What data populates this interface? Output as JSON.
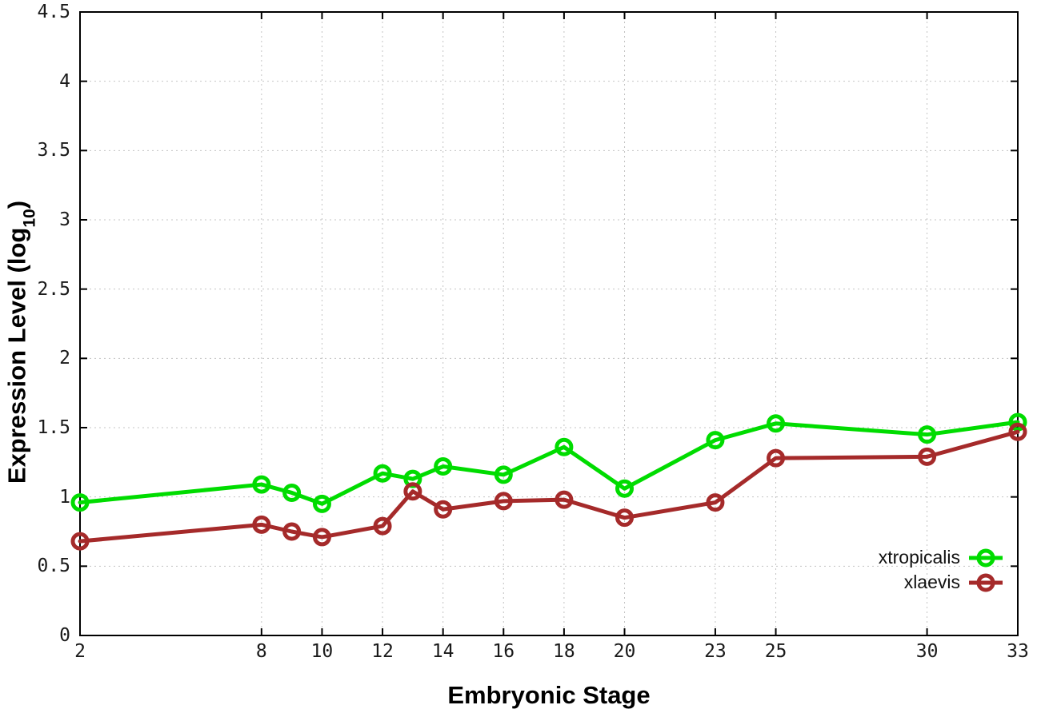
{
  "chart_data": {
    "type": "line",
    "title": "",
    "xlabel": "Embryonic Stage",
    "ylabel": "Expression Level (log10)",
    "ylabel_parts": {
      "prefix": "Expression Level (log",
      "subscript": "10",
      "suffix": ")"
    },
    "x": [
      2,
      8,
      9,
      10,
      12,
      13,
      14,
      16,
      18,
      20,
      23,
      25,
      30,
      33
    ],
    "series": [
      {
        "name": "xtropicalis",
        "color": "#00dc00",
        "marker": "open-circle",
        "values": [
          0.96,
          1.09,
          1.03,
          0.95,
          1.17,
          1.13,
          1.22,
          1.16,
          1.36,
          1.06,
          1.41,
          1.53,
          1.45,
          1.54
        ]
      },
      {
        "name": "xlaevis",
        "color": "#a52a2a",
        "marker": "open-circle",
        "values": [
          0.68,
          0.8,
          0.75,
          0.71,
          0.79,
          1.04,
          0.91,
          0.97,
          0.98,
          0.85,
          0.96,
          1.28,
          1.29,
          1.47
        ]
      }
    ],
    "xlim": [
      2,
      33
    ],
    "ylim": [
      0,
      4.5
    ],
    "x_ticks": [
      2,
      8,
      10,
      12,
      14,
      16,
      18,
      20,
      23,
      25,
      30,
      33
    ],
    "x_tick_labels": [
      "2",
      "8",
      "10",
      "12",
      "14",
      "16",
      "18",
      "20",
      "23",
      "25",
      "30",
      "33"
    ],
    "y_ticks": [
      0,
      0.5,
      1,
      1.5,
      2,
      2.5,
      3,
      3.5,
      4,
      4.5
    ],
    "y_tick_labels": [
      "0",
      "0.5",
      "1",
      "1.5",
      "2",
      "2.5",
      "3",
      "3.5",
      "4",
      "4.5"
    ],
    "grid": true,
    "legend_position": "inside-bottom-right"
  },
  "colors": {
    "background": "#ffffff",
    "grid": "#c4c4c4",
    "axis": "#000000",
    "tick_text": "#1a1a1a",
    "xtropicalis": "#00dc00",
    "xlaevis": "#a52a2a"
  }
}
